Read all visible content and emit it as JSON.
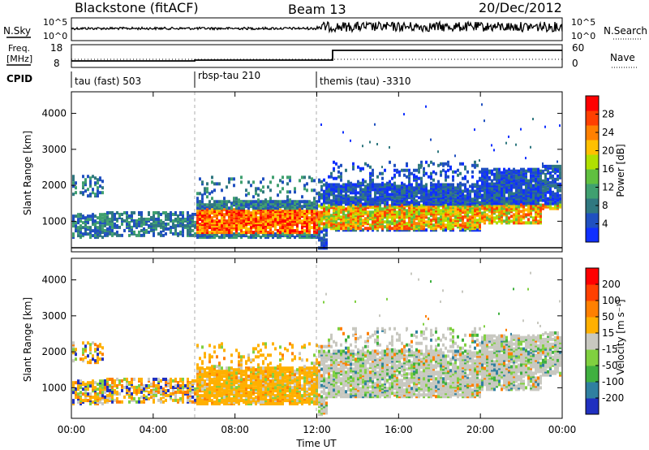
{
  "header": {
    "station": "Blackstone (fitACF)",
    "beam": "Beam 13",
    "date": "20/Dec/2012"
  },
  "strips": {
    "nsky_label": "N.Sky",
    "nsky_ticks": [
      "10^5",
      "10^0"
    ],
    "nsearch_label": "N.Search",
    "nsearch_ticks": [
      "10^5",
      "10^0"
    ],
    "freq_label_1": "Freq.",
    "freq_label_2": "[MHz]",
    "freq_ticks": [
      "18",
      "8"
    ],
    "nave_label": "Nave",
    "nave_ticks": [
      "60",
      "0"
    ],
    "cpid_label": "CPID",
    "cpid_segments": [
      {
        "name": "tau (fast) 503",
        "start": 0
      },
      {
        "name": "rbsp-tau 210",
        "start": 6
      },
      {
        "name": "themis (tau) -3310",
        "start": 12
      }
    ]
  },
  "chart_data": [
    {
      "type": "heatmap",
      "title": "",
      "xlabel": "",
      "ylabel": "Slant Range [km]",
      "xlim": [
        0,
        24
      ],
      "ylim": [
        150,
        4600
      ],
      "y_ticks": [
        "1000",
        "2000",
        "3000",
        "4000"
      ],
      "colorbar": {
        "label": "Power [dB]",
        "ticks": [
          "4",
          "8",
          "12",
          "16",
          "20",
          "24",
          "28"
        ],
        "colors": [
          "#1030ff",
          "#2050c0",
          "#307880",
          "#40a070",
          "#60c040",
          "#b0e000",
          "#ffc000",
          "#ff8000",
          "#ff4000",
          "#ff0000"
        ]
      }
    },
    {
      "type": "heatmap",
      "title": "",
      "xlabel": "Time UT",
      "ylabel": "Slant Range [km]",
      "xlim": [
        0,
        24
      ],
      "ylim": [
        150,
        4600
      ],
      "x_ticks": [
        "00:00",
        "04:00",
        "08:00",
        "12:00",
        "16:00",
        "20:00",
        "00:00"
      ],
      "y_ticks": [
        "1000",
        "2000",
        "3000",
        "4000"
      ],
      "colorbar": {
        "label": "Velocity [m s⁻¹]",
        "ticks": [
          "200",
          "100",
          "50",
          "15",
          "-15",
          "-50",
          "-100",
          "-200"
        ],
        "colors": [
          "#2030c0",
          "#3080a0",
          "#40b040",
          "#80d040",
          "#c8c8c0",
          "#ffb000",
          "#ff8000",
          "#ff4000",
          "#ff0000"
        ]
      }
    }
  ]
}
